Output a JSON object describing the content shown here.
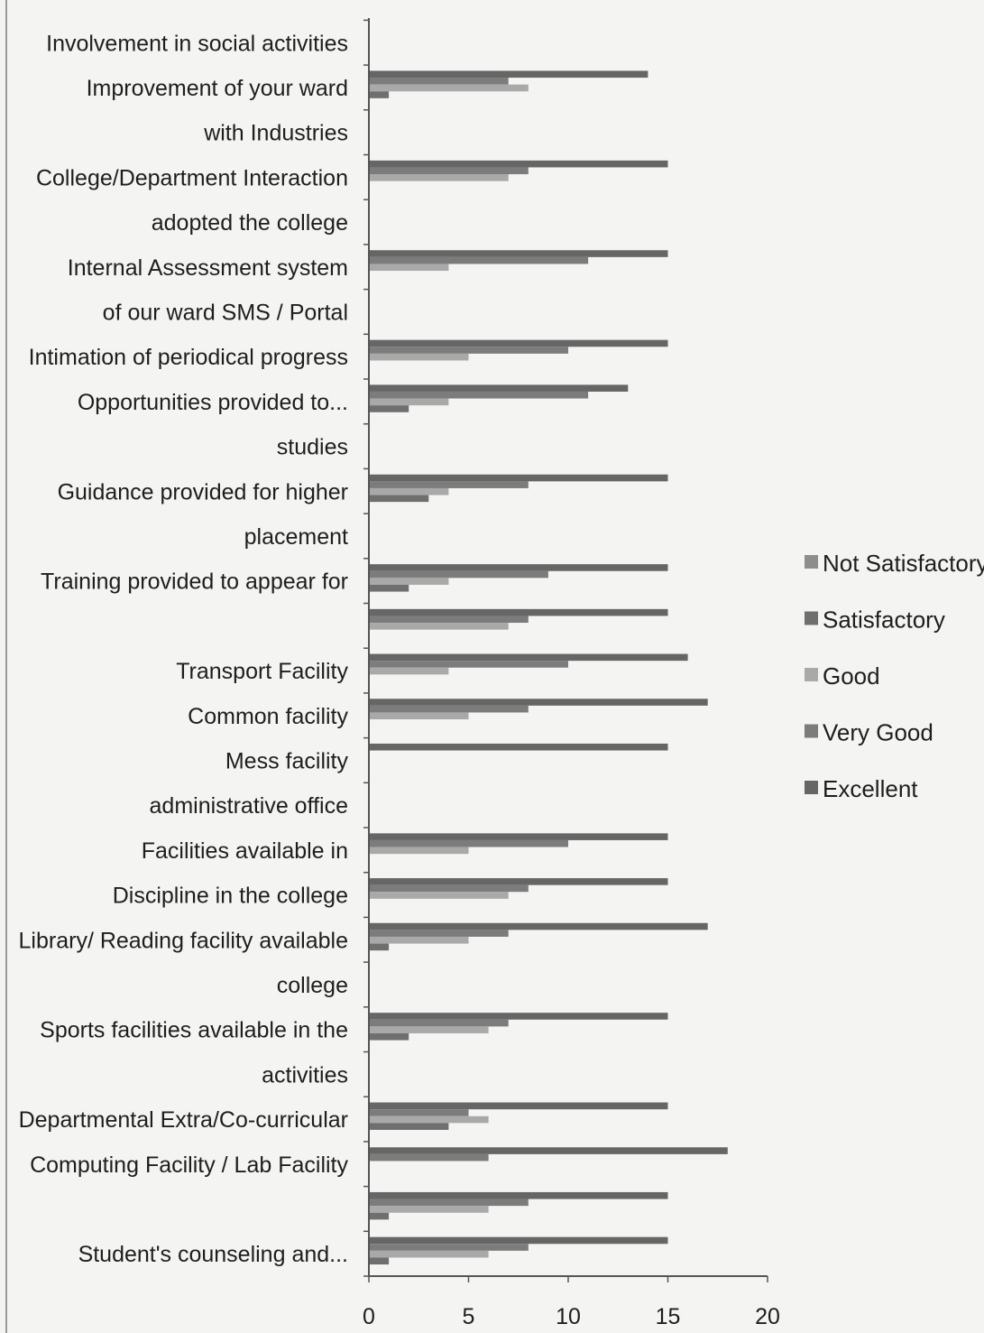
{
  "chart_data": {
    "type": "bar",
    "orientation": "horizontal",
    "title": "",
    "xlabel": "",
    "ylabel": "",
    "xlim": [
      0,
      20
    ],
    "x_ticks": [
      "0",
      "5",
      "10",
      "15",
      "20"
    ],
    "grid": false,
    "legend_position": "right",
    "categories": [
      "Student's counseling and...",
      "",
      "Computing Facility / Lab Facility",
      "Departmental Extra/Co-curricular",
      "activities",
      "Sports facilities available in the",
      "college",
      "Library/ Reading facility available",
      "Discipline in the college",
      "Facilities available in",
      "administrative office",
      "Mess facility",
      "Common facility",
      "Transport Facility",
      "",
      "Training provided to appear for",
      "placement",
      "Guidance provided for higher",
      "studies",
      "Opportunities provided to...",
      "Intimation of periodical progress",
      "of our ward SMS / Portal",
      "Internal Assessment system",
      "adopted the college",
      "College/Department Interaction",
      "with Industries",
      "Improvement of your ward",
      "Involvement in social activities"
    ],
    "series": [
      {
        "name": "Excellent",
        "color": "#666666",
        "values": [
          15,
          15,
          18,
          15,
          0,
          15,
          0,
          17,
          15,
          15,
          0,
          15,
          17,
          16,
          15,
          15,
          0,
          15,
          0,
          13,
          15,
          0,
          15,
          0,
          15,
          0,
          14,
          0
        ]
      },
      {
        "name": "Very Good",
        "color": "#7c7c7c",
        "values": [
          8,
          8,
          6,
          5,
          0,
          7,
          0,
          7,
          8,
          10,
          0,
          0,
          8,
          10,
          8,
          9,
          0,
          8,
          0,
          11,
          10,
          0,
          11,
          0,
          8,
          0,
          7,
          0
        ]
      },
      {
        "name": "Good",
        "color": "#a9a9a9",
        "values": [
          6,
          6,
          0,
          6,
          0,
          6,
          0,
          5,
          7,
          5,
          0,
          0,
          5,
          4,
          7,
          4,
          0,
          4,
          0,
          4,
          5,
          0,
          4,
          0,
          7,
          0,
          8,
          0
        ]
      },
      {
        "name": "Satisfactory",
        "color": "#6f6f6f",
        "values": [
          1,
          1,
          0,
          4,
          0,
          2,
          0,
          1,
          0,
          0,
          0,
          0,
          0,
          0,
          0,
          2,
          0,
          3,
          0,
          2,
          0,
          0,
          0,
          0,
          0,
          0,
          1,
          0
        ]
      },
      {
        "name": "Not Satisfactory",
        "color": "#8e8e8e",
        "values": [
          0,
          0,
          0,
          0,
          0,
          0,
          0,
          0,
          0,
          0,
          0,
          0,
          0,
          0,
          0,
          0,
          0,
          0,
          0,
          0,
          0,
          0,
          0,
          0,
          0,
          0,
          0,
          0
        ]
      }
    ],
    "legend_order": [
      "Not Satisfactory",
      "Satisfactory",
      "Good",
      "Very Good",
      "Excellent"
    ]
  }
}
